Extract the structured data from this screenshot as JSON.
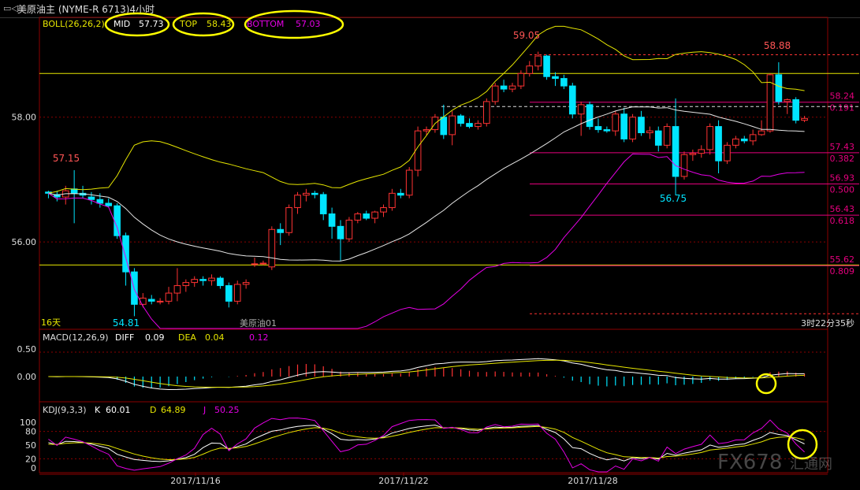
{
  "window": {
    "title": "美原油主 (NYME-R 6713)4小时",
    "icon": "window-icon"
  },
  "colors": {
    "up": "#ff3333",
    "down": "#00e5ff",
    "mid": "#e6e6e6",
    "top": "#e6e600",
    "bottom": "#e600e6",
    "fib_line": "#e6007e",
    "grid": "#8b0000",
    "axis_text": "#dddddd",
    "highlight_circle": "#ffff00"
  },
  "boll_panel": {
    "label": "BOLL(26,26,2)",
    "mid_label": "MID",
    "mid_value": "57.73",
    "top_label": "TOP",
    "top_value": "58.43",
    "bottom_label": "BOTTOM",
    "bottom_value": "57.03",
    "period_label": "16天",
    "watermark_label": "美原油01",
    "countdown": "3时22分35秒",
    "price_labels": [
      "58.00",
      "56.00"
    ],
    "annotations": [
      "59.05",
      "57.15",
      "54.81",
      "56.75",
      "58.88"
    ],
    "fib_levels": [
      {
        "price": "58.24",
        "ratio": "0.191"
      },
      {
        "price": "57.43",
        "ratio": "0.382"
      },
      {
        "price": "56.93",
        "ratio": "0.500"
      },
      {
        "price": "56.43",
        "ratio": "0.618"
      },
      {
        "price": "55.62",
        "ratio": "0.809"
      }
    ]
  },
  "macd_panel": {
    "label": "MACD(12,26,9)",
    "diff_label": "DIFF",
    "diff_value": "0.09",
    "dea_label": "DEA",
    "dea_value": "0.04",
    "macd_value": "0.12",
    "axis_labels": [
      "0.50",
      "0.00"
    ]
  },
  "kdj_panel": {
    "label": "KDJ(9,3,3)",
    "k_label": "K",
    "k_value": "60.01",
    "d_label": "D",
    "d_value": "64.89",
    "j_label": "J",
    "j_value": "50.25",
    "axis_labels": [
      "100",
      "80",
      "50",
      "20",
      "0"
    ]
  },
  "date_labels": [
    "2017/11/16",
    "2017/11/22",
    "2017/11/28"
  ],
  "brand_watermark": "FX678",
  "brand_watermark_cn": "汇通网",
  "chart_data": {
    "type": "candlestick",
    "timeframe": "4小时",
    "ylim": [
      54.6,
      59.6
    ],
    "candles": [
      [
        56.8,
        56.82,
        56.7,
        56.78
      ],
      [
        56.76,
        56.82,
        56.65,
        56.72
      ],
      [
        56.72,
        56.9,
        56.6,
        56.82
      ],
      [
        56.85,
        57.15,
        56.3,
        56.78
      ],
      [
        56.78,
        56.9,
        56.7,
        56.75
      ],
      [
        56.72,
        56.8,
        56.6,
        56.68
      ],
      [
        56.68,
        56.78,
        56.55,
        56.62
      ],
      [
        56.62,
        56.7,
        56.55,
        56.58
      ],
      [
        56.58,
        56.62,
        56.05,
        56.1
      ],
      [
        56.1,
        56.15,
        55.3,
        55.52
      ],
      [
        55.52,
        55.58,
        54.81,
        55.0
      ],
      [
        55.0,
        55.18,
        54.95,
        55.1
      ],
      [
        55.08,
        55.15,
        55.0,
        55.05
      ],
      [
        55.05,
        55.1,
        55.0,
        55.05
      ],
      [
        55.05,
        55.28,
        55.0,
        55.18
      ],
      [
        55.18,
        55.58,
        55.05,
        55.3
      ],
      [
        55.3,
        55.4,
        55.2,
        55.35
      ],
      [
        55.35,
        55.45,
        55.28,
        55.4
      ],
      [
        55.4,
        55.45,
        55.3,
        55.38
      ],
      [
        55.38,
        55.48,
        55.3,
        55.42
      ],
      [
        55.42,
        55.45,
        55.25,
        55.3
      ],
      [
        55.3,
        55.35,
        54.95,
        55.05
      ],
      [
        55.05,
        55.38,
        55.0,
        55.32
      ],
      [
        55.32,
        55.4,
        55.25,
        55.35
      ],
      [
        55.65,
        55.75,
        55.6,
        55.65
      ],
      [
        55.65,
        55.7,
        55.63,
        55.66
      ],
      [
        55.6,
        56.25,
        55.55,
        56.2
      ],
      [
        56.2,
        56.3,
        55.95,
        56.15
      ],
      [
        56.15,
        56.6,
        56.1,
        56.55
      ],
      [
        56.55,
        56.8,
        56.45,
        56.75
      ],
      [
        56.75,
        56.85,
        56.65,
        56.78
      ],
      [
        56.78,
        56.82,
        56.7,
        56.76
      ],
      [
        56.76,
        56.8,
        56.35,
        56.45
      ],
      [
        56.45,
        56.55,
        56.05,
        56.25
      ],
      [
        56.25,
        56.35,
        55.7,
        56.05
      ],
      [
        56.05,
        56.4,
        56.0,
        56.35
      ],
      [
        56.35,
        56.48,
        56.3,
        56.45
      ],
      [
        56.45,
        56.5,
        56.35,
        56.38
      ],
      [
        56.38,
        56.5,
        56.3,
        56.48
      ],
      [
        56.48,
        56.6,
        56.4,
        56.55
      ],
      [
        56.55,
        56.85,
        56.5,
        56.78
      ],
      [
        56.78,
        56.85,
        56.7,
        56.75
      ],
      [
        56.75,
        57.2,
        56.7,
        57.15
      ],
      [
        57.15,
        57.85,
        57.05,
        57.78
      ],
      [
        57.78,
        57.85,
        57.7,
        57.8
      ],
      [
        57.8,
        58.05,
        57.75,
        58.0
      ],
      [
        58.0,
        58.2,
        57.65,
        57.72
      ],
      [
        57.72,
        58.1,
        57.55,
        58.02
      ],
      [
        58.02,
        58.05,
        57.85,
        57.9
      ],
      [
        57.9,
        57.98,
        57.82,
        57.85
      ],
      [
        57.85,
        57.95,
        57.8,
        57.9
      ],
      [
        57.9,
        58.3,
        57.85,
        58.25
      ],
      [
        58.25,
        58.55,
        58.2,
        58.5
      ],
      [
        58.5,
        58.6,
        58.4,
        58.45
      ],
      [
        58.45,
        58.55,
        58.4,
        58.5
      ],
      [
        58.5,
        58.75,
        58.45,
        58.7
      ],
      [
        58.7,
        58.9,
        58.65,
        58.82
      ],
      [
        58.82,
        59.05,
        58.75,
        58.98
      ],
      [
        58.98,
        59.0,
        58.6,
        58.65
      ],
      [
        58.65,
        58.72,
        58.5,
        58.62
      ],
      [
        58.62,
        58.68,
        58.45,
        58.5
      ],
      [
        58.5,
        58.55,
        57.98,
        58.05
      ],
      [
        58.05,
        58.25,
        57.7,
        58.2
      ],
      [
        58.2,
        58.25,
        57.8,
        57.85
      ],
      [
        57.85,
        57.98,
        57.75,
        57.8
      ],
      [
        57.8,
        57.85,
        57.75,
        57.78
      ],
      [
        57.78,
        58.1,
        57.7,
        58.05
      ],
      [
        58.05,
        58.15,
        57.6,
        57.65
      ],
      [
        57.65,
        58.05,
        57.6,
        58.0
      ],
      [
        58.0,
        58.1,
        57.7,
        57.75
      ],
      [
        57.75,
        57.85,
        57.65,
        57.78
      ],
      [
        57.78,
        57.85,
        57.45,
        57.55
      ],
      [
        57.55,
        57.9,
        57.5,
        57.85
      ],
      [
        57.85,
        58.3,
        56.75,
        57.05
      ],
      [
        57.05,
        57.45,
        57.0,
        57.4
      ],
      [
        57.4,
        57.48,
        57.3,
        57.42
      ],
      [
        57.42,
        57.55,
        57.35,
        57.48
      ],
      [
        57.48,
        57.9,
        57.4,
        57.85
      ],
      [
        57.85,
        57.95,
        57.1,
        57.3
      ],
      [
        57.3,
        57.6,
        57.25,
        57.55
      ],
      [
        57.55,
        57.7,
        57.5,
        57.65
      ],
      [
        57.65,
        57.7,
        57.58,
        57.62
      ],
      [
        57.62,
        57.8,
        57.55,
        57.72
      ],
      [
        57.72,
        57.95,
        57.7,
        57.78
      ],
      [
        57.78,
        58.7,
        57.75,
        58.68
      ],
      [
        58.68,
        58.88,
        58.2,
        58.25
      ],
      [
        58.25,
        58.3,
        58.05,
        58.28
      ],
      [
        58.28,
        58.32,
        57.9,
        57.95
      ],
      [
        57.95,
        58.02,
        57.92,
        57.98
      ]
    ]
  }
}
